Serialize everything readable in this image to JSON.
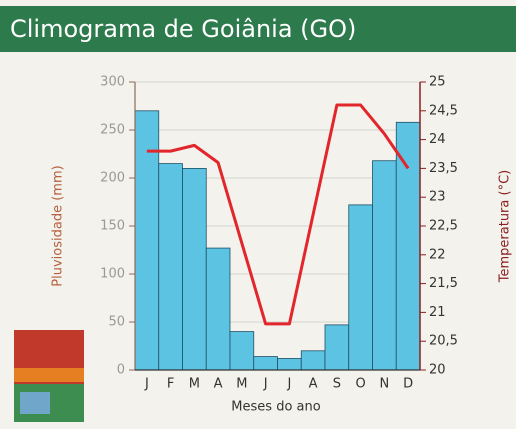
{
  "chart_data": {
    "type": "combo",
    "title": "Climograma de Goiânia (GO)",
    "x_label": "Meses do ano",
    "y_label": "Pluviosidade (mm)",
    "y2_label": "Temperatura (°C)",
    "categories": [
      "J",
      "F",
      "M",
      "A",
      "M",
      "J",
      "J",
      "A",
      "S",
      "O",
      "N",
      "D"
    ],
    "series": [
      {
        "type": "bar",
        "color": "#5cc3e3",
        "values": [
          270,
          215,
          210,
          127,
          40,
          14,
          12,
          20,
          47,
          172,
          218,
          258
        ]
      },
      {
        "type": "line",
        "axis": "y2",
        "color": "#e2262b",
        "values": [
          23.8,
          23.8,
          23.9,
          23.6,
          22.2,
          20.8,
          20.8,
          22.7,
          24.6,
          24.6,
          24.1,
          23.5
        ]
      }
    ],
    "ylim": [
      0,
      300
    ],
    "yticks": [
      0,
      50,
      100,
      150,
      200,
      250,
      300
    ],
    "y2lim": [
      20,
      25
    ],
    "y2ticks": [
      20,
      {
        "value": 20.5,
        "label": "20,5"
      },
      21,
      {
        "value": 21.5,
        "label": "21,5"
      },
      22,
      {
        "value": 22.5,
        "label": "22,5"
      },
      23,
      {
        "value": 23.5,
        "label": "23,5"
      },
      24,
      {
        "value": 24.5,
        "label": "24,5"
      },
      25
    ],
    "grid": true
  }
}
